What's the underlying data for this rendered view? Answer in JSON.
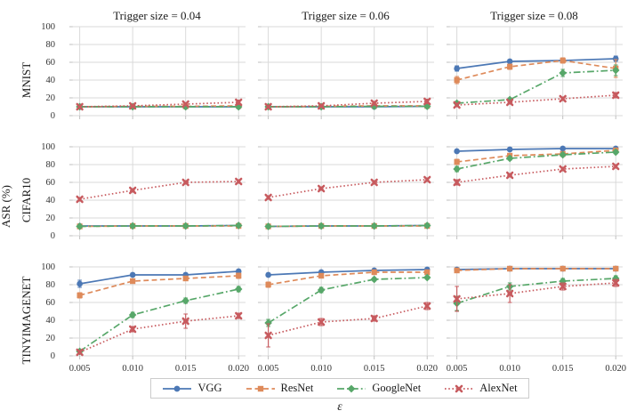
{
  "figure": {
    "col_titles": [
      "Trigger size = 0.04",
      "Trigger size = 0.06",
      "Trigger size = 0.08"
    ],
    "row_labels": [
      "MNIST",
      "CIFAR10",
      "TINYIMAGENET"
    ],
    "ylabel": "ASR (%)",
    "xlabel": "ε",
    "background": "#ffffff",
    "grid_color": "#d9d9d9",
    "tick_color": "#bfbfbf"
  },
  "chart_data": {
    "type": "line",
    "layout": "3x3 grid of subplots; columns share trigger-size titles, rows share dataset labels",
    "x": [
      0.005,
      0.01,
      0.015,
      0.02
    ],
    "x_tick_labels": [
      "0.005",
      "0.010",
      "0.015",
      "0.020"
    ],
    "y_ticks": [
      0,
      20,
      40,
      60,
      80,
      100
    ],
    "ylim": [
      0,
      100
    ],
    "grid": true,
    "legend": {
      "position": "bottom",
      "entries": [
        {
          "name": "VGG",
          "color": "#4c78b5",
          "line": "solid",
          "marker": "circle"
        },
        {
          "name": "ResNet",
          "color": "#de8a5a",
          "line": "dashed",
          "marker": "square"
        },
        {
          "name": "GoogleNet",
          "color": "#57a769",
          "line": "dashdot",
          "marker": "diamond"
        },
        {
          "name": "AlexNet",
          "color": "#c75a5e",
          "line": "dotted",
          "marker": "x"
        }
      ]
    },
    "panels": [
      {
        "row": "MNIST",
        "cols": [
          {
            "col_title": "Trigger size = 0.04",
            "series": [
              {
                "name": "VGG",
                "values": [
                  10,
                  10,
                  10,
                  10
                ],
                "err": [
                  0.5,
                  0.5,
                  0.5,
                  0.5
                ]
              },
              {
                "name": "ResNet",
                "values": [
                  10,
                  10.5,
                  10.5,
                  11
                ],
                "err": [
                  0.5,
                  0.5,
                  0.5,
                  0.5
                ]
              },
              {
                "name": "GoogleNet",
                "values": [
                  10,
                  10,
                  10,
                  10
                ],
                "err": [
                  0.5,
                  0.5,
                  0.5,
                  0.5
                ]
              },
              {
                "name": "AlexNet",
                "values": [
                  10,
                  11,
                  13,
                  15
                ],
                "err": [
                  1,
                  1,
                  1.5,
                  2.5
                ]
              }
            ]
          },
          {
            "col_title": "Trigger size = 0.06",
            "series": [
              {
                "name": "VGG",
                "values": [
                  10,
                  10,
                  10,
                  10.5
                ],
                "err": [
                  0.5,
                  0.5,
                  0.5,
                  0.5
                ]
              },
              {
                "name": "ResNet",
                "values": [
                  10,
                  10.5,
                  11,
                  11
                ],
                "err": [
                  0.5,
                  0.5,
                  0.5,
                  0.5
                ]
              },
              {
                "name": "GoogleNet",
                "values": [
                  10,
                  10,
                  10.5,
                  10.5
                ],
                "err": [
                  0.5,
                  0.5,
                  0.5,
                  0.5
                ]
              },
              {
                "name": "AlexNet",
                "values": [
                  10,
                  11,
                  14,
                  16
                ],
                "err": [
                  1,
                  1,
                  2,
                  2.5
                ]
              }
            ]
          },
          {
            "col_title": "Trigger size = 0.08",
            "series": [
              {
                "name": "VGG",
                "values": [
                  53,
                  61,
                  62,
                  64
                ],
                "err": [
                  3,
                  2,
                  2,
                  3
                ]
              },
              {
                "name": "ResNet",
                "values": [
                  40,
                  55,
                  62,
                  53
                ],
                "err": [
                  4,
                  3,
                  3,
                  10
                ]
              },
              {
                "name": "GoogleNet",
                "values": [
                  14,
                  18,
                  48,
                  51
                ],
                "err": [
                  2,
                  2,
                  4,
                  6
                ]
              },
              {
                "name": "AlexNet",
                "values": [
                  12,
                  15,
                  19,
                  23
                ],
                "err": [
                  2,
                  2,
                  2,
                  3
                ]
              }
            ]
          }
        ]
      },
      {
        "row": "CIFAR10",
        "cols": [
          {
            "col_title": "Trigger size = 0.04",
            "series": [
              {
                "name": "VGG",
                "values": [
                  11,
                  11,
                  11,
                  11.5
                ],
                "err": [
                  0.5,
                  0.5,
                  0.5,
                  0.5
                ]
              },
              {
                "name": "ResNet",
                "values": [
                  10.5,
                  11,
                  11,
                  11
                ],
                "err": [
                  0.5,
                  0.5,
                  0.5,
                  0.5
                ]
              },
              {
                "name": "GoogleNet",
                "values": [
                  10.5,
                  11,
                  11,
                  11.5
                ],
                "err": [
                  0.5,
                  0.5,
                  0.5,
                  0.5
                ]
              },
              {
                "name": "AlexNet",
                "values": [
                  41,
                  51,
                  60,
                  61
                ],
                "err": [
                  2,
                  2,
                  2,
                  2
                ]
              }
            ]
          },
          {
            "col_title": "Trigger size = 0.06",
            "series": [
              {
                "name": "VGG",
                "values": [
                  10.5,
                  11,
                  11,
                  11.5
                ],
                "err": [
                  0.5,
                  0.5,
                  0.5,
                  0.5
                ]
              },
              {
                "name": "ResNet",
                "values": [
                  10.5,
                  11,
                  11,
                  11
                ],
                "err": [
                  0.5,
                  0.5,
                  0.5,
                  0.5
                ]
              },
              {
                "name": "GoogleNet",
                "values": [
                  10.5,
                  11,
                  11,
                  11.5
                ],
                "err": [
                  0.5,
                  0.5,
                  0.5,
                  0.5
                ]
              },
              {
                "name": "AlexNet",
                "values": [
                  43,
                  53,
                  60,
                  63
                ],
                "err": [
                  2,
                  2,
                  2,
                  2
                ]
              }
            ]
          },
          {
            "col_title": "Trigger size = 0.08",
            "series": [
              {
                "name": "VGG",
                "values": [
                  95,
                  97,
                  98,
                  98
                ],
                "err": [
                  1,
                  1,
                  1,
                  1
                ]
              },
              {
                "name": "ResNet",
                "values": [
                  83,
                  90,
                  92,
                  96
                ],
                "err": [
                  3,
                  2,
                  2,
                  1
                ]
              },
              {
                "name": "GoogleNet",
                "values": [
                  75,
                  87,
                  91,
                  94
                ],
                "err": [
                  3,
                  2,
                  2,
                  2
                ]
              },
              {
                "name": "AlexNet",
                "values": [
                  60,
                  68,
                  75,
                  78
                ],
                "err": [
                  3,
                  2,
                  2,
                  2
                ]
              }
            ]
          }
        ]
      },
      {
        "row": "TINYIMAGENET",
        "cols": [
          {
            "col_title": "Trigger size = 0.04",
            "series": [
              {
                "name": "VGG",
                "values": [
                  81,
                  91,
                  91,
                  95
                ],
                "err": [
                  4,
                  2,
                  2,
                  2
                ]
              },
              {
                "name": "ResNet",
                "values": [
                  68,
                  84,
                  87,
                  90
                ],
                "err": [
                  3,
                  2,
                  2,
                  3
                ]
              },
              {
                "name": "GoogleNet",
                "values": [
                  5,
                  46,
                  62,
                  75
                ],
                "err": [
                  2,
                  3,
                  3,
                  3
                ]
              },
              {
                "name": "AlexNet",
                "values": [
                  4,
                  30,
                  39,
                  45
                ],
                "err": [
                  2,
                  3,
                  8,
                  3
                ]
              }
            ]
          },
          {
            "col_title": "Trigger size = 0.06",
            "series": [
              {
                "name": "VGG",
                "values": [
                  91,
                  94,
                  96,
                  97
                ],
                "err": [
                  2,
                  2,
                  1,
                  1
                ]
              },
              {
                "name": "ResNet",
                "values": [
                  80,
                  90,
                  94,
                  94
                ],
                "err": [
                  3,
                  2,
                  2,
                  2
                ]
              },
              {
                "name": "GoogleNet",
                "values": [
                  37,
                  74,
                  86,
                  88
                ],
                "err": [
                  4,
                  3,
                  2,
                  2
                ]
              },
              {
                "name": "AlexNet",
                "values": [
                  23,
                  38,
                  42,
                  56
                ],
                "err": [
                  13,
                  4,
                  3,
                  4
                ]
              }
            ]
          },
          {
            "col_title": "Trigger size = 0.08",
            "series": [
              {
                "name": "VGG",
                "values": [
                  97,
                  98,
                  98,
                  98
                ],
                "err": [
                  1,
                  1,
                  1,
                  1
                ]
              },
              {
                "name": "ResNet",
                "values": [
                  96,
                  98,
                  98,
                  98
                ],
                "err": [
                  2,
                  1,
                  1,
                  1
                ]
              },
              {
                "name": "GoogleNet",
                "values": [
                  59,
                  78,
                  84,
                  87
                ],
                "err": [
                  8,
                  4,
                  3,
                  3
                ]
              },
              {
                "name": "AlexNet",
                "values": [
                  64,
                  70,
                  78,
                  82
                ],
                "err": [
                  14,
                  10,
                  4,
                  4
                ]
              }
            ]
          }
        ]
      }
    ]
  }
}
